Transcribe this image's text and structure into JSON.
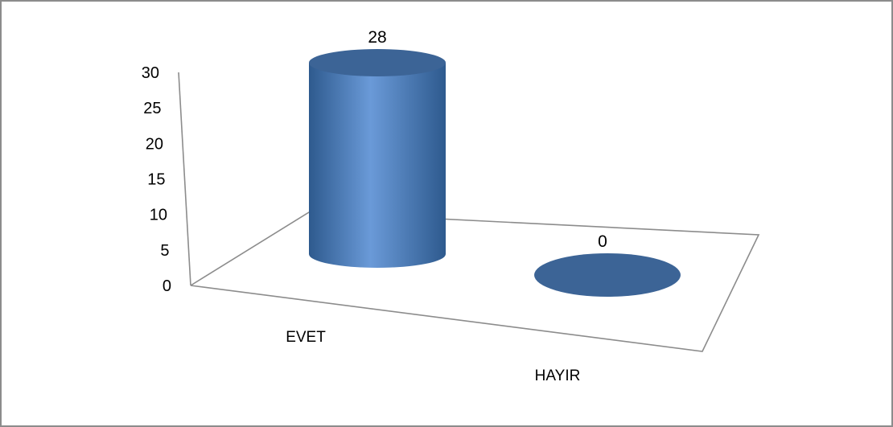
{
  "chart_data": {
    "type": "bar",
    "style": "3d-cylinder",
    "categories": [
      "EVET",
      "HAYIR"
    ],
    "values": [
      28,
      0
    ],
    "data_labels": [
      "28",
      "0"
    ],
    "ylim": [
      0,
      30
    ],
    "yticks": [
      0,
      5,
      10,
      15,
      20,
      25,
      30
    ],
    "grid": false,
    "legend": "none",
    "colors": {
      "bar_body": "#4f81bd",
      "bar_highlight": "#6a9ad8",
      "bar_shadow": "#2e5a8e",
      "bar_top": "#3c6496",
      "axis": "#8c8c8c"
    }
  }
}
